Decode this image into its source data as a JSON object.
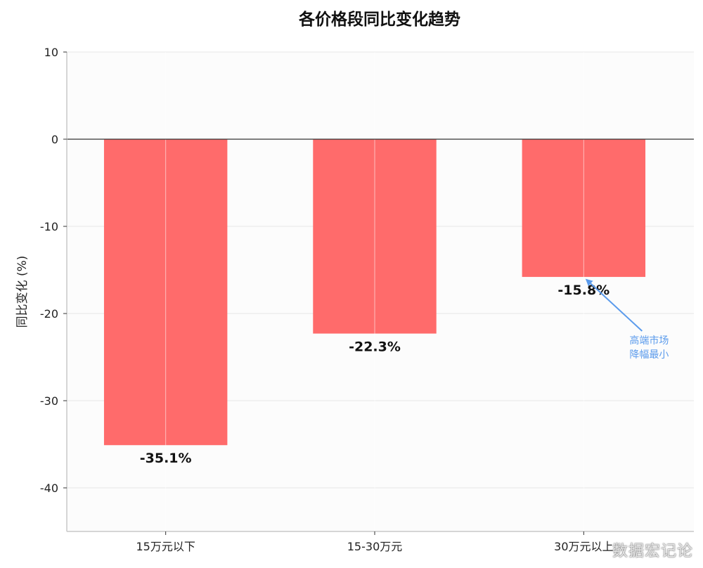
{
  "chart_data": {
    "type": "bar",
    "title": "各价格段同比变化趋势",
    "xlabel": "",
    "ylabel": "同比变化 (%)",
    "categories": [
      "15万元以下",
      "15-30万元",
      "30万元以上"
    ],
    "values": [
      -35.1,
      -22.3,
      -15.8
    ],
    "value_labels": [
      "-35.1%",
      "-22.3%",
      "-15.8%"
    ],
    "ylim": [
      -45,
      10
    ],
    "yticks": [
      10,
      0,
      -10,
      -20,
      -30,
      -40
    ],
    "ytick_labels": [
      "10",
      "0",
      "-10",
      "-20",
      "-30",
      "-40"
    ],
    "grid": true,
    "legend": "none",
    "bar_color": "#ff6b6b",
    "zero_line_color": "#333333",
    "annotation": {
      "text_lines": [
        "高端市场",
        "降幅最小"
      ],
      "target_category": "30万元以上",
      "target_value": -15.8,
      "color": "#5b9bec"
    }
  },
  "watermark": "数据宏记论"
}
